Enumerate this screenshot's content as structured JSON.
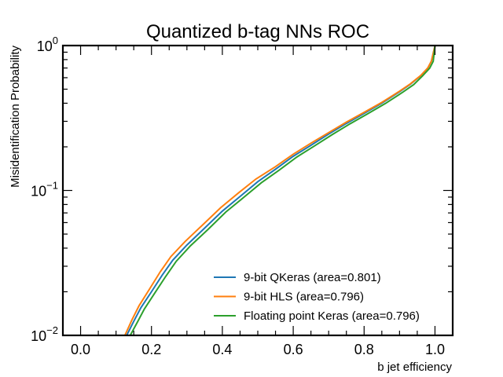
{
  "chart_data": {
    "type": "line",
    "title": "Quantized b-tag NNs ROC",
    "xlabel": "b jet efficiency",
    "ylabel": "Misidentification Probability",
    "xlim": [
      -0.05,
      1.05
    ],
    "ylim": [
      0.01,
      1.0
    ],
    "yscale": "log",
    "grid": false,
    "legend_position": "lower-right",
    "x_ticks": [
      {
        "value": 0.0,
        "label": "0.0"
      },
      {
        "value": 0.2,
        "label": "0.2"
      },
      {
        "value": 0.4,
        "label": "0.4"
      },
      {
        "value": 0.6,
        "label": "0.6"
      },
      {
        "value": 0.8,
        "label": "0.8"
      },
      {
        "value": 1.0,
        "label": "1.0"
      }
    ],
    "y_ticks": [
      {
        "value": 1.0,
        "base": "10",
        "exponent": "0"
      },
      {
        "value": 0.1,
        "base": "10",
        "exponent": "−1"
      },
      {
        "value": 0.01,
        "base": "10",
        "exponent": "−2"
      }
    ],
    "series": [
      {
        "name": "9-bit QKeras (area=0.801)",
        "color": "#1f77b4",
        "x": [
          0.13,
          0.15,
          0.17,
          0.2,
          0.23,
          0.26,
          0.3,
          0.35,
          0.4,
          0.45,
          0.5,
          0.55,
          0.6,
          0.65,
          0.7,
          0.75,
          0.8,
          0.85,
          0.9,
          0.93,
          0.96,
          0.98,
          0.99,
          1.0
        ],
        "y": [
          0.01,
          0.0125,
          0.0155,
          0.02,
          0.026,
          0.033,
          0.042,
          0.055,
          0.072,
          0.091,
          0.115,
          0.14,
          0.172,
          0.205,
          0.245,
          0.29,
          0.34,
          0.4,
          0.48,
          0.54,
          0.62,
          0.7,
          0.78,
          1.0
        ]
      },
      {
        "name": "9-bit HLS (area=0.796)",
        "color": "#ff7f0e",
        "x": [
          0.125,
          0.145,
          0.165,
          0.195,
          0.225,
          0.255,
          0.295,
          0.345,
          0.395,
          0.445,
          0.495,
          0.55,
          0.6,
          0.65,
          0.7,
          0.75,
          0.8,
          0.85,
          0.9,
          0.93,
          0.96,
          0.98,
          0.99,
          1.0
        ],
        "y": [
          0.01,
          0.0128,
          0.016,
          0.021,
          0.0275,
          0.035,
          0.0445,
          0.058,
          0.076,
          0.096,
          0.12,
          0.146,
          0.178,
          0.212,
          0.251,
          0.296,
          0.346,
          0.405,
          0.484,
          0.543,
          0.622,
          0.702,
          0.781,
          1.0
        ]
      },
      {
        "name": "Floating point Keras (area=0.796)",
        "color": "#2ca02c",
        "x": [
          0.14,
          0.16,
          0.18,
          0.21,
          0.24,
          0.27,
          0.31,
          0.36,
          0.41,
          0.46,
          0.51,
          0.56,
          0.61,
          0.66,
          0.71,
          0.76,
          0.81,
          0.86,
          0.91,
          0.94,
          0.965,
          0.985,
          0.995,
          1.0
        ],
        "y": [
          0.01,
          0.0123,
          0.0152,
          0.0197,
          0.0255,
          0.0325,
          0.0415,
          0.054,
          0.071,
          0.0895,
          0.113,
          0.138,
          0.17,
          0.203,
          0.243,
          0.288,
          0.338,
          0.398,
          0.478,
          0.538,
          0.618,
          0.698,
          0.778,
          1.0
        ]
      }
    ]
  }
}
